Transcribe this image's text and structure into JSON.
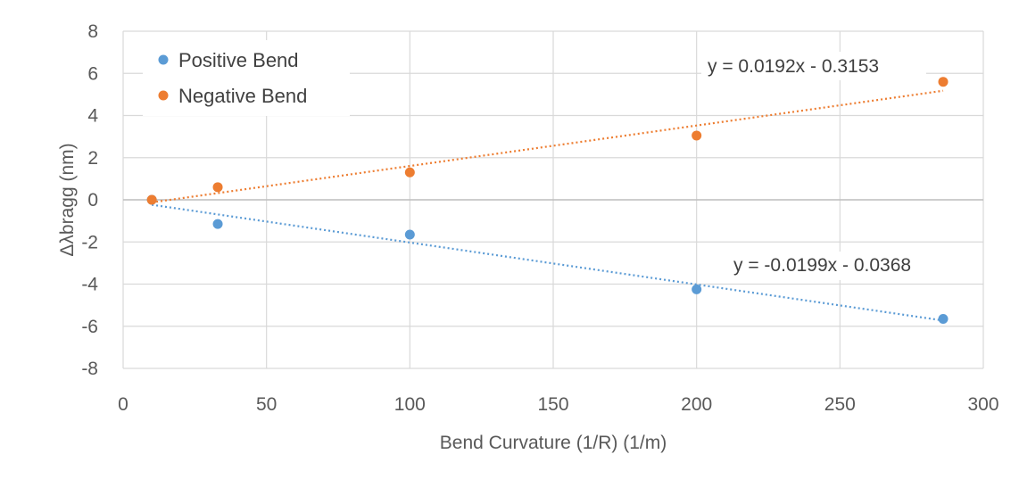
{
  "chart_data": {
    "type": "scatter",
    "title": "",
    "xlabel": "Bend Curvature (1/R)  (1/m)",
    "ylabel": "Δλbragg  (nm)",
    "xlim": [
      0,
      300
    ],
    "ylim": [
      -8,
      8
    ],
    "x_ticks": [
      "0",
      "50",
      "100",
      "150",
      "200",
      "250",
      "300"
    ],
    "y_ticks": [
      "-8",
      "-6",
      "-4",
      "-2",
      "0",
      "2",
      "4",
      "6",
      "8"
    ],
    "grid": true,
    "legend_position": "top-left",
    "series": [
      {
        "name": "Positive Bend",
        "color": "#5b9bd5",
        "x": [
          10,
          33,
          100,
          200,
          286
        ],
        "y": [
          0,
          -1.15,
          -1.65,
          -4.25,
          -5.65
        ],
        "trendline": {
          "slope": -0.0199,
          "intercept": -0.0368,
          "equation": "y = -0.0199x - 0.0368"
        }
      },
      {
        "name": "Negative Bend",
        "color": "#ed7d31",
        "x": [
          10,
          33,
          100,
          200,
          286
        ],
        "y": [
          0,
          0.6,
          1.3,
          3.05,
          5.6
        ],
        "trendline": {
          "slope": 0.0192,
          "intercept": -0.3153,
          "equation": "y = 0.0192x - 0.3153"
        }
      }
    ]
  }
}
